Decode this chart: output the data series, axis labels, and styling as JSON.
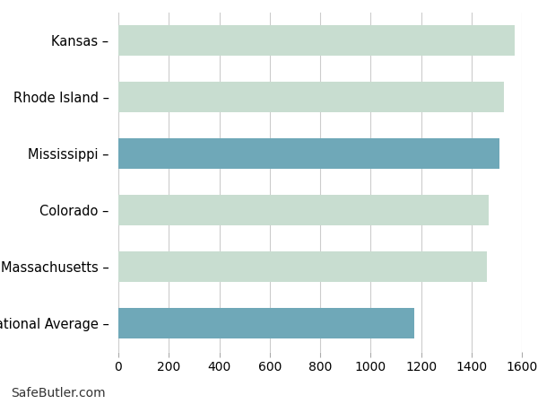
{
  "categories": [
    "National Average",
    "Massachusetts",
    "Colorado",
    "Mississippi",
    "Rhode Island",
    "Kansas"
  ],
  "values": [
    1173,
    1460,
    1470,
    1510,
    1530,
    1570
  ],
  "highlight_color": "#6fa8b8",
  "normal_color": "#c8ddd0",
  "highlight_indices": [
    0,
    3
  ],
  "xlim": [
    0,
    1600
  ],
  "xticks": [
    0,
    200,
    400,
    600,
    800,
    1000,
    1200,
    1400,
    1600
  ],
  "watermark": "SafeButler.com",
  "background_color": "#ffffff",
  "grid_color": "#cccccc",
  "bar_height": 0.55,
  "label_fontsize": 10.5,
  "tick_fontsize": 10,
  "watermark_fontsize": 10
}
